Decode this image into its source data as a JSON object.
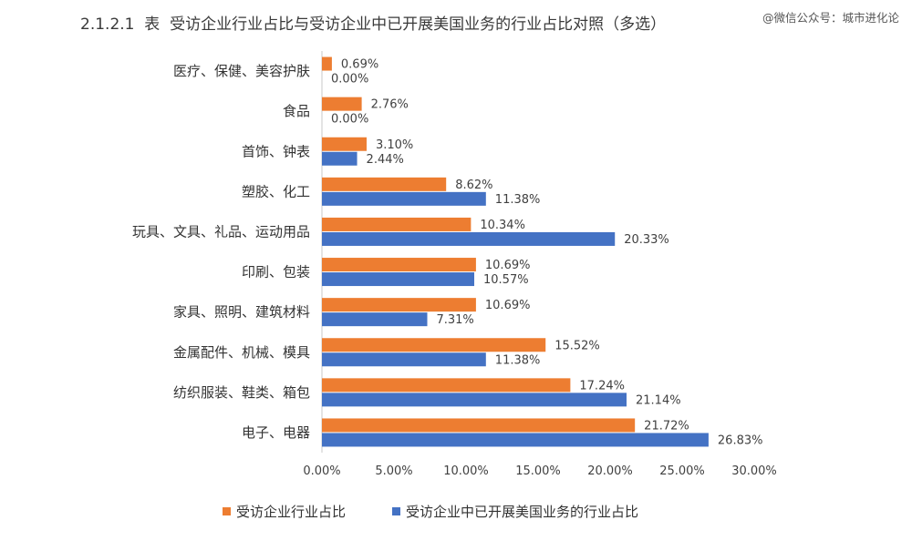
{
  "watermark": "@微信公众号：城市进化论",
  "chart_data": {
    "type": "bar",
    "orientation": "horizontal",
    "title": "2.1.2.1  表  受访企业行业占比与受访企业中已开展美国业务的行业占比对照（多选）",
    "categories": [
      "医疗、保健、美容护肤",
      "食品",
      "首饰、钟表",
      "塑胶、化工",
      "玩具、文具、礼品、运动用品",
      "印刷、包装",
      "家具、照明、建筑材料",
      "金属配件、机械、模具",
      "纺织服装、鞋类、箱包",
      "电子、电器"
    ],
    "series": [
      {
        "name": "受访企业行业占比",
        "color": "#ED7D31",
        "values": [
          0.69,
          2.76,
          3.1,
          8.62,
          10.34,
          10.69,
          10.69,
          15.52,
          17.24,
          21.72
        ],
        "labels": [
          "0.69%",
          "2.76%",
          "3.10%",
          "8.62%",
          "10.34%",
          "10.69%",
          "10.69%",
          "15.52%",
          "17.24%",
          "21.72%"
        ]
      },
      {
        "name": "受访企业中已开展美国业务的行业占比",
        "color": "#4472C4",
        "values": [
          0.0,
          0.0,
          2.44,
          11.38,
          20.33,
          10.57,
          7.31,
          11.38,
          21.14,
          26.83
        ],
        "labels": [
          "0.00%",
          "0.00%",
          "2.44%",
          "11.38%",
          "20.33%",
          "10.57%",
          "7.31%",
          "11.38%",
          "21.14%",
          "26.83%"
        ]
      }
    ],
    "xlim": [
      0,
      30
    ],
    "xticks": [
      0,
      5,
      10,
      15,
      20,
      25,
      30
    ],
    "xtick_labels": [
      "0.00%",
      "5.00%",
      "10.00%",
      "15.00%",
      "20.00%",
      "25.00%",
      "30.00%"
    ],
    "grid": false,
    "legend": "bottom"
  }
}
